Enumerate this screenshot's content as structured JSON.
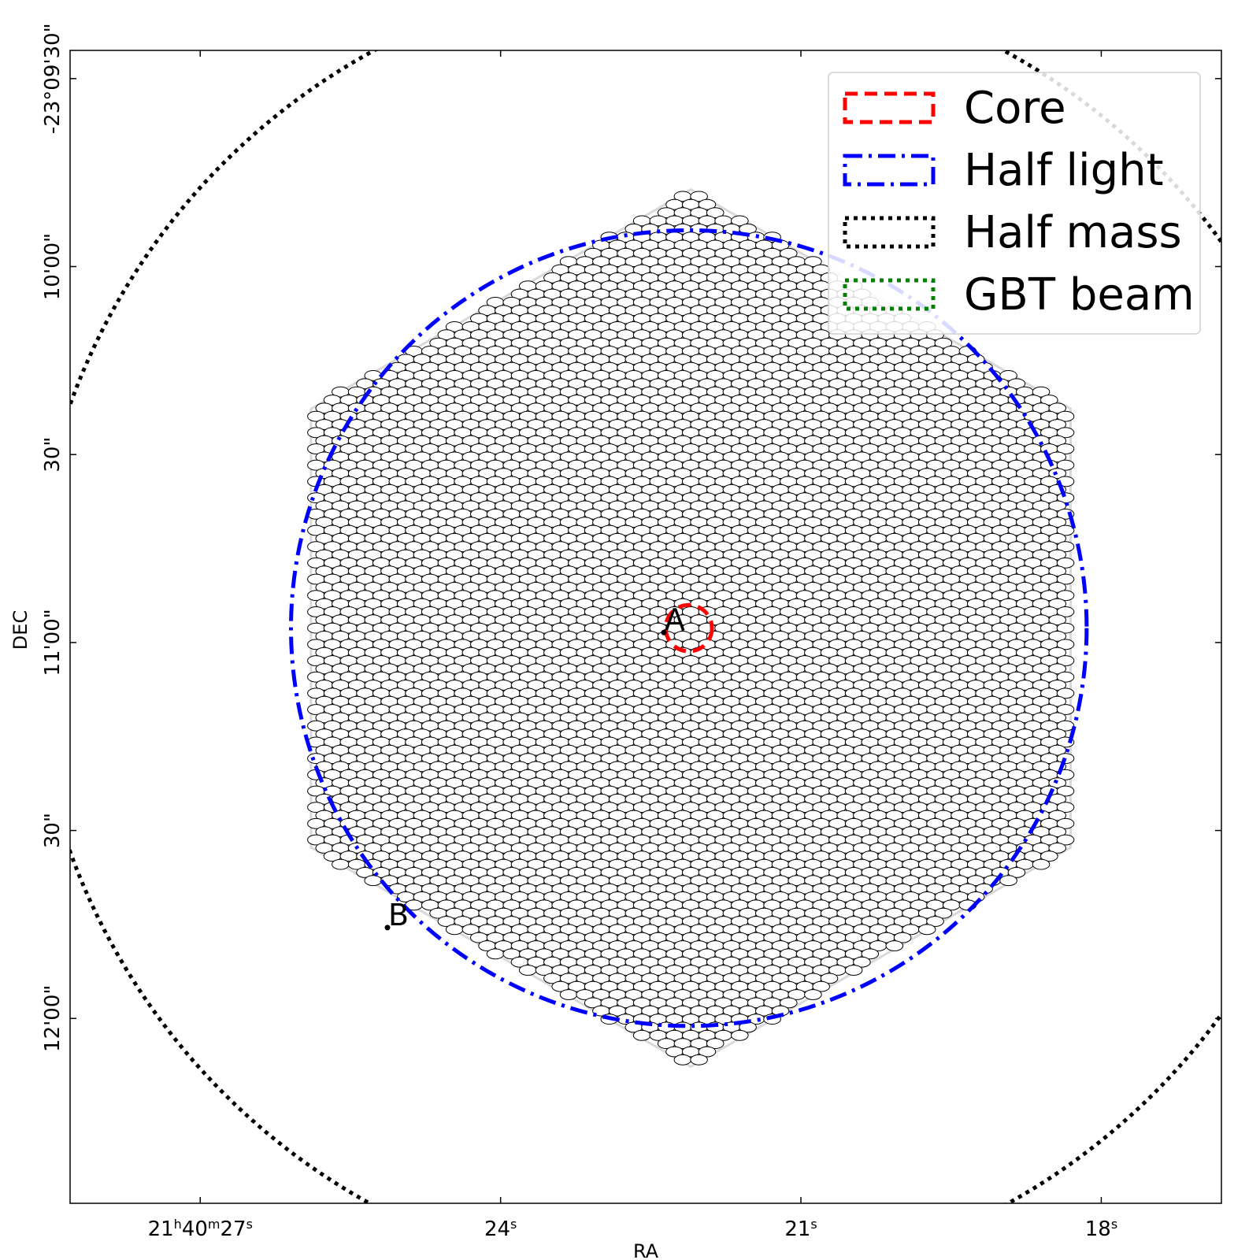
{
  "chart_data": {
    "type": "scatter",
    "xlabel": "RA",
    "ylabel": "DEC",
    "x_ticks": [
      {
        "sec": 27.0,
        "h": "21",
        "m": "40",
        "s": "27"
      },
      {
        "sec": 24.0,
        "s": "24"
      },
      {
        "sec": 21.0,
        "s": "21"
      },
      {
        "sec": 18.0,
        "s": "18"
      }
    ],
    "y_ticks": [
      {
        "arcsec": 570,
        "label": "-23°09'30\""
      },
      {
        "arcsec": 600,
        "label": "10'00\""
      },
      {
        "arcsec": 630,
        "label": "30\""
      },
      {
        "arcsec": 660,
        "label": "11'00\""
      },
      {
        "arcsec": 690,
        "label": "30\""
      },
      {
        "arcsec": 720,
        "label": "12'00\""
      }
    ],
    "xlim_ra_sec": [
      28.3,
      16.8
    ],
    "ylim_dec_arcsec": [
      565.5,
      749.5
    ],
    "legend_position": "top-right",
    "legend": [
      {
        "label": "Core",
        "color": "#ff0000",
        "style": "dashed"
      },
      {
        "label": "Half light",
        "color": "#0000ff",
        "style": "dashdot"
      },
      {
        "label": "Half mass",
        "color": "#000000",
        "style": "dotted"
      },
      {
        "label": "GBT beam",
        "color": "#008000",
        "style": "dotted"
      }
    ],
    "center": {
      "ra_sec": 22.1,
      "dec_arcsec": 657.7
    },
    "circles": [
      {
        "name": "Core",
        "radius_arcsec": 3.7,
        "center_ra_sec": 22.12,
        "center_dec_arcsec": 657.7
      },
      {
        "name": "Half light",
        "radius_arcsec": 63.5,
        "center_ra_sec": 22.12,
        "center_dec_arcsec": 657.7
      },
      {
        "name": "Half mass",
        "radius_arcsec": 105,
        "center_ra_sec": 22.12,
        "center_dec_arcsec": 657.7
      }
    ],
    "points": [
      {
        "label": "A",
        "ra_sec": 22.37,
        "dec_arcsec": 658.4
      },
      {
        "label": "B",
        "ra_sec": 25.13,
        "dec_arcsec": 705.5
      }
    ],
    "fiber_bundle": {
      "shape": "hexagon",
      "circumradius_arcsec": 70,
      "fiber_rows": 54,
      "fiber_pitch_arcsec": 2.6
    }
  }
}
